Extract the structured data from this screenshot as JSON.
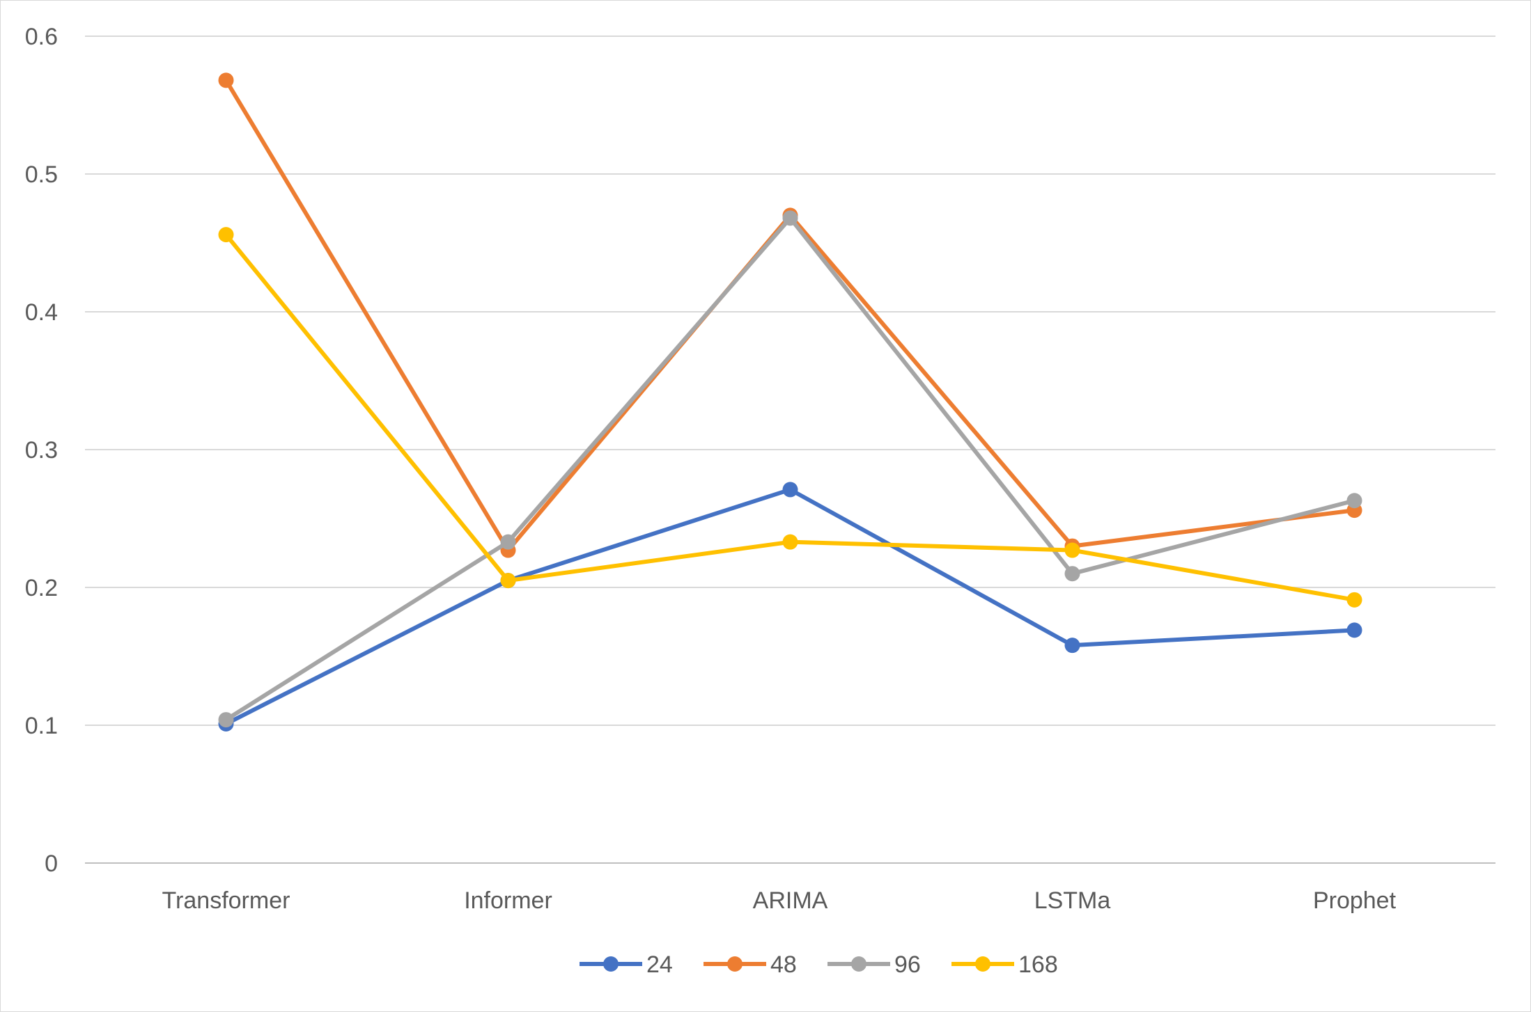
{
  "chart_data": {
    "type": "line",
    "title": "",
    "xlabel": "",
    "ylabel": "",
    "categories": [
      "Transformer",
      "Informer",
      "ARIMA",
      "LSTMa",
      "Prophet"
    ],
    "ylim": [
      0,
      0.6
    ],
    "yticks": [
      "0",
      "0.1",
      "0.2",
      "0.3",
      "0.4",
      "0.5",
      "0.6"
    ],
    "ytick_values": [
      0,
      0.1,
      0.2,
      0.3,
      0.4,
      0.5,
      0.6
    ],
    "grid": "horizontal",
    "legend_position": "bottom",
    "series": [
      {
        "name": "24",
        "color": "#4472C4",
        "values": [
          0.101,
          0.205,
          0.271,
          0.158,
          0.169
        ]
      },
      {
        "name": "48",
        "color": "#ED7D31",
        "values": [
          0.568,
          0.227,
          0.47,
          0.23,
          0.256
        ]
      },
      {
        "name": "96",
        "color": "#A5A5A5",
        "values": [
          0.104,
          0.233,
          0.468,
          0.21,
          0.263
        ]
      },
      {
        "name": "168",
        "color": "#FFC000",
        "values": [
          0.456,
          0.205,
          0.233,
          0.227,
          0.191
        ]
      }
    ]
  }
}
